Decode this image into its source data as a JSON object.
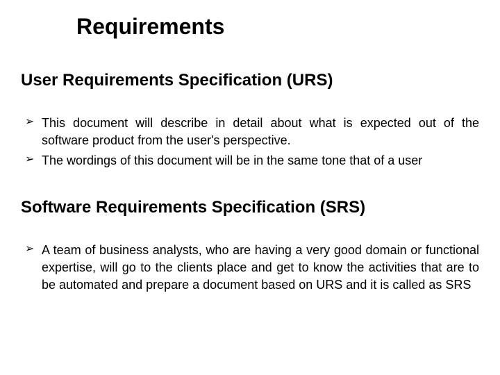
{
  "title": "Requirements",
  "sections": [
    {
      "heading": "User  Requirements  Specification  (URS)",
      "bullets": [
        "This document will  describe  in  detail  about  what  is  expected  out  of the  software  product from  the  user's  perspective.",
        "The wordings of this document will be in the same tone that of a user"
      ]
    },
    {
      "heading": "Software  Requirements  Specification (SRS)",
      "bullets": [
        "A team of business  analysts,  who  are  having  a  very  good  domain or  functional expertise,  will  go  to  the  clients  place  and  get  to know  the  activities  that  are to  be  automated and prepare a document based on URS and it is called as SRS"
      ]
    }
  ],
  "colors": {
    "background": "#ffffff",
    "text": "#000000"
  },
  "typography": {
    "title_fontsize": 32,
    "heading_fontsize": 24,
    "body_fontsize": 18
  }
}
